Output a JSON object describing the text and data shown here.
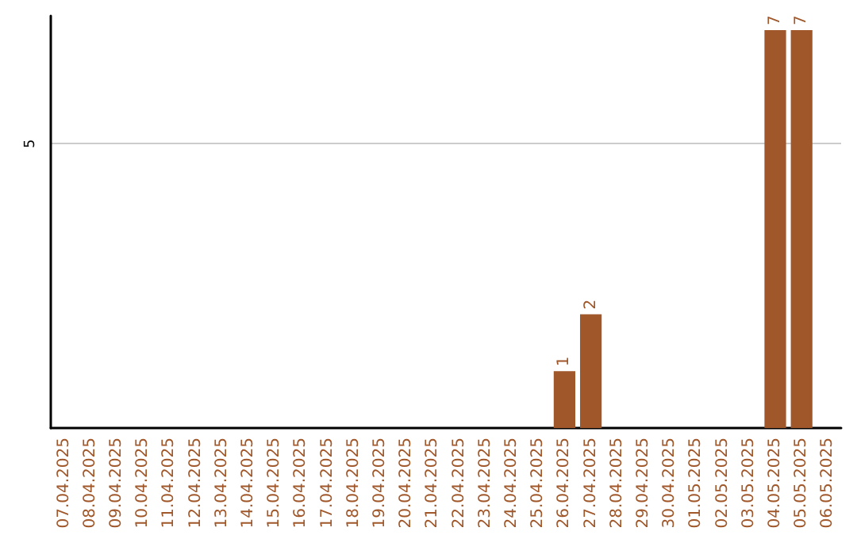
{
  "chart_data": {
    "type": "bar",
    "categories": [
      "07.04.2025",
      "08.04.2025",
      "09.04.2025",
      "10.04.2025",
      "11.04.2025",
      "12.04.2025",
      "13.04.2025",
      "14.04.2025",
      "15.04.2025",
      "16.04.2025",
      "17.04.2025",
      "18.04.2025",
      "19.04.2025",
      "20.04.2025",
      "21.04.2025",
      "22.04.2025",
      "23.04.2025",
      "24.04.2025",
      "25.04.2025",
      "26.04.2025",
      "27.04.2025",
      "28.04.2025",
      "29.04.2025",
      "30.04.2025",
      "01.05.2025",
      "02.05.2025",
      "03.05.2025",
      "04.05.2025",
      "05.05.2025",
      "06.05.2025"
    ],
    "values": [
      null,
      null,
      null,
      null,
      null,
      null,
      null,
      null,
      null,
      null,
      null,
      null,
      null,
      null,
      null,
      null,
      null,
      null,
      null,
      1,
      2,
      null,
      null,
      null,
      null,
      null,
      null,
      7,
      7,
      null
    ],
    "color": "#a0572a",
    "ylim": [
      0,
      7.25
    ],
    "yticks": [
      5
    ],
    "grid": "y",
    "data_labels": true
  }
}
